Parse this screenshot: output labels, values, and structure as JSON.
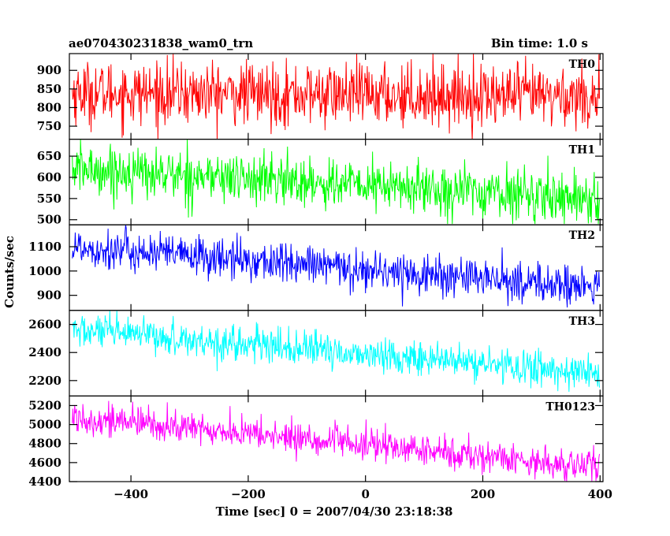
{
  "header": {
    "title": "ae070430231838_wam0_trn",
    "bin_time": "Bin time: 1.0 s"
  },
  "chart_data": {
    "type": "line",
    "xlabel": "Time [sec] 0 = 2007/04/30 23:18:38",
    "ylabel": "Counts/sec",
    "xlim": [
      -505,
      405
    ],
    "x_ticks": [
      -400,
      -200,
      0,
      200,
      400
    ],
    "x_tick_labels": [
      "−400",
      "−200",
      "0",
      "200",
      "400"
    ],
    "x_range": [
      -500,
      399
    ],
    "bin_time_s": 1.0,
    "grid": false,
    "panels": [
      {
        "name": "TH0",
        "color": "#ff0000",
        "ylim": [
          715,
          945
        ],
        "yticks": [
          750,
          800,
          850,
          900
        ],
        "start_mean": 840,
        "end_mean": 830,
        "noise_sd": 42,
        "clip_low": 710,
        "clip_high": 945
      },
      {
        "name": "TH1",
        "color": "#00ff00",
        "ylim": [
          488,
          690
        ],
        "yticks": [
          500,
          550,
          600,
          650
        ],
        "start_mean": 620,
        "end_mean": 550,
        "noise_sd": 30,
        "clip_low": 490,
        "clip_high": 690
      },
      {
        "name": "TH2",
        "color": "#0000ff",
        "ylim": [
          838,
          1190
        ],
        "yticks": [
          900,
          1000,
          1100
        ],
        "start_mean": 1100,
        "end_mean": 930,
        "noise_sd": 42,
        "clip_low": 840,
        "clip_high": 1190
      },
      {
        "name": "TH3",
        "color": "#00ffff",
        "ylim": [
          2090,
          2700
        ],
        "yticks": [
          2200,
          2400,
          2600
        ],
        "start_mean": 2560,
        "end_mean": 2250,
        "noise_sd": 62,
        "clip_low": 2120,
        "clip_high": 2700
      },
      {
        "name": "TH0123",
        "color": "#ff00ff",
        "ylim": [
          4400,
          5300
        ],
        "yticks": [
          4400,
          4600,
          4800,
          5000,
          5200
        ],
        "start_mean": 5080,
        "end_mean": 4550,
        "noise_sd": 85,
        "clip_low": 4400,
        "clip_high": 5300
      }
    ]
  }
}
